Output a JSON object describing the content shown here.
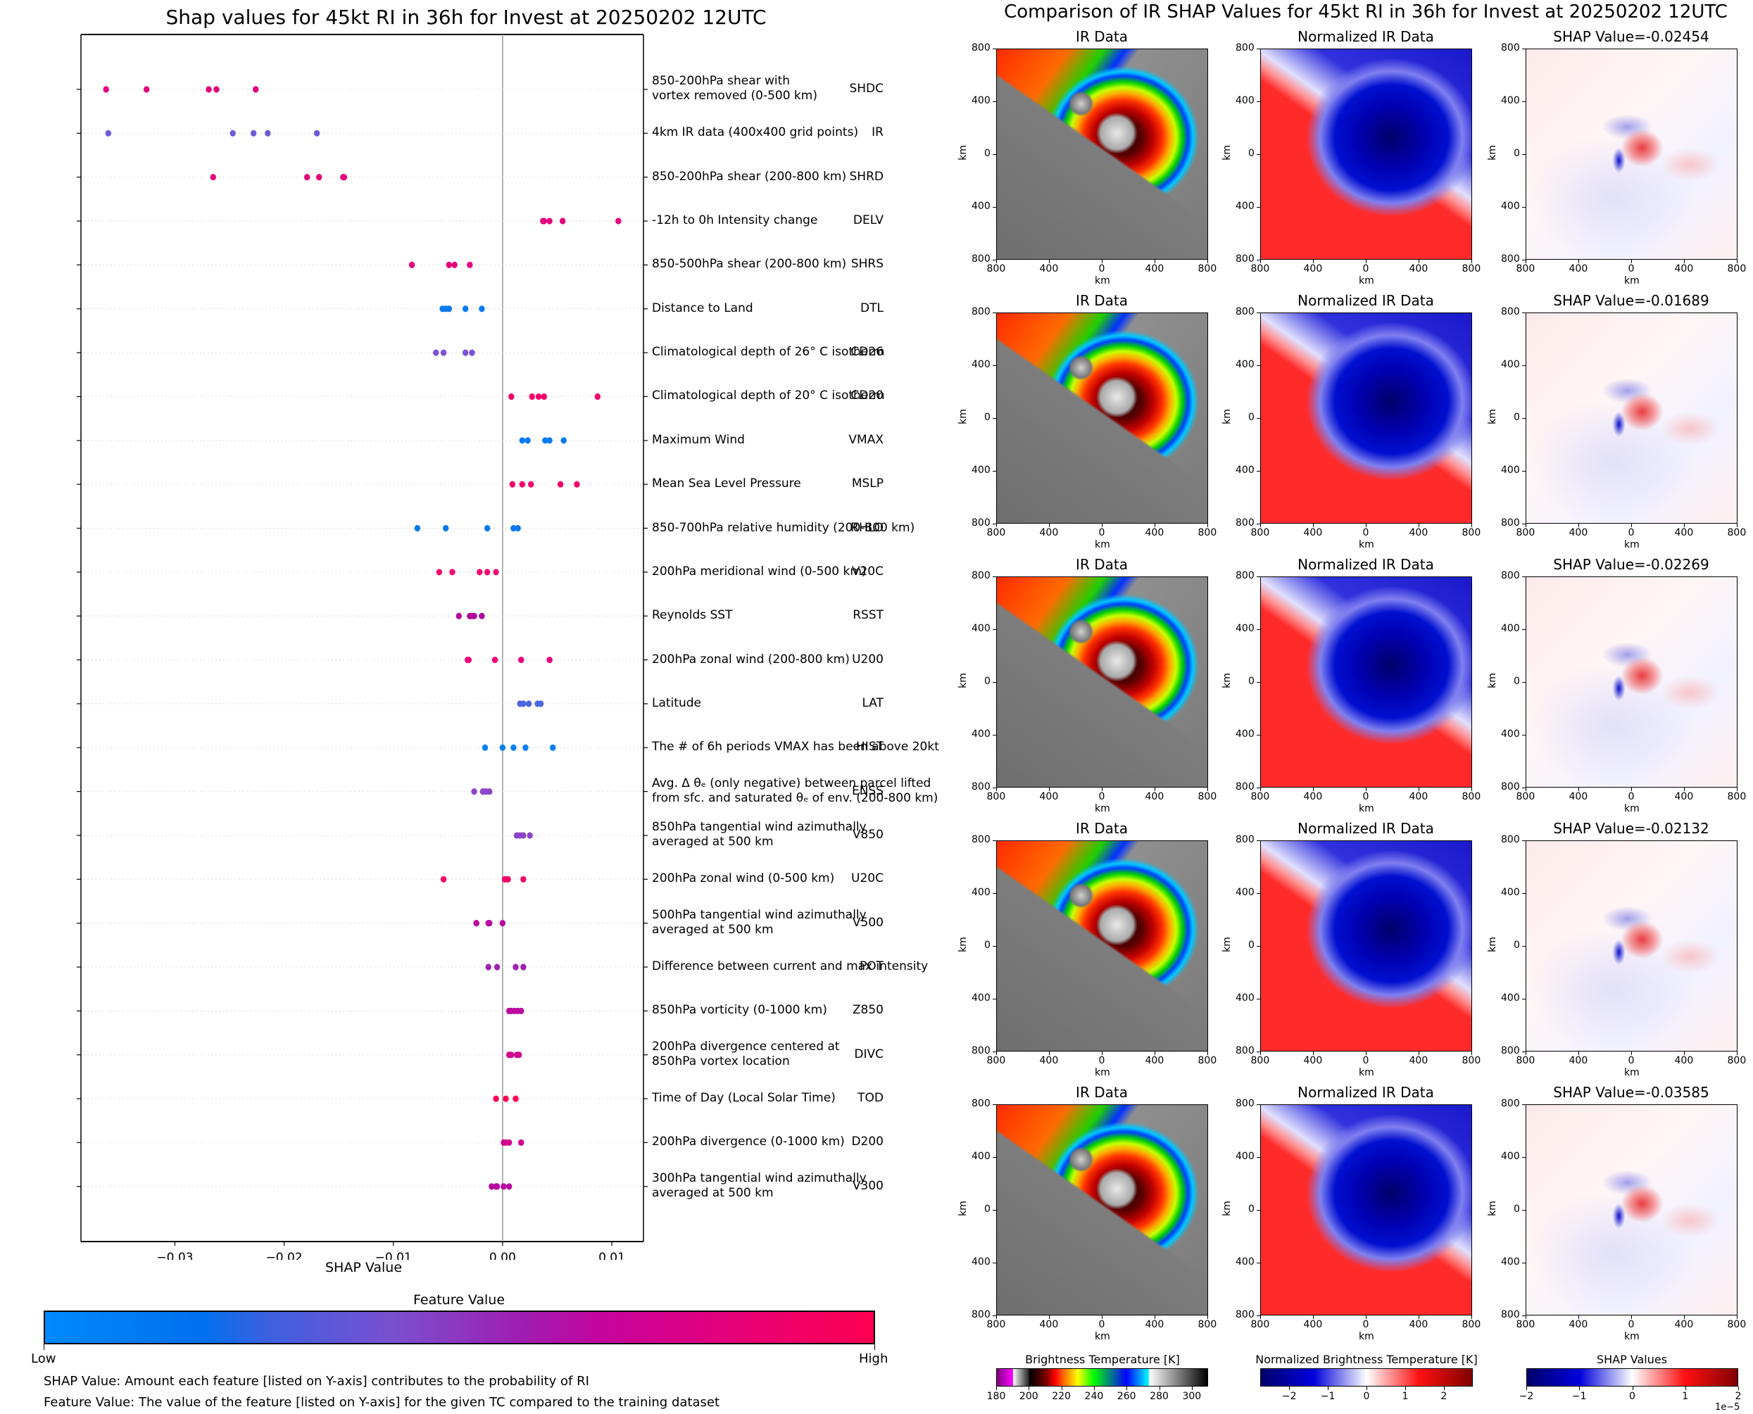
{
  "left_title": "Shap values for 45kt RI in 36h for Invest at 20250202 12UTC",
  "right_title": "Comparison of IR SHAP Values for 45kt RI in 36h for Invest at 20250202 12UTC",
  "chart_data": [
    {
      "type": "scatter",
      "title": "Shap values for 45kt RI in 36h for Invest at 20250202 12UTC",
      "xlabel": "SHAP Value",
      "ylabel": "",
      "xlim": [
        -0.0386,
        0.0129
      ],
      "xticks": [
        -0.03,
        -0.02,
        -0.01,
        0.0,
        0.01
      ],
      "xtick_labels": [
        "−0.03",
        "−0.02",
        "−0.01",
        "0.00",
        "0.01"
      ],
      "zero_line": 0.0,
      "grid": "dotted horizontal lines per feature",
      "color_scale": {
        "title": "Feature Value",
        "low_label": "Low",
        "high_label": "High",
        "low_color": "#008afb",
        "high_color": "#ff0052"
      },
      "features": [
        {
          "name": "SHDC",
          "description": [
            "850-200hPa shear with",
            "vortex removed (0-500 km)"
          ],
          "color": "#e5007d",
          "values": [
            -0.0363,
            -0.0326,
            -0.0269,
            -0.0262,
            -0.0226
          ]
        },
        {
          "name": "IR",
          "description": [
            "4km IR data (400x400 grid points)"
          ],
          "color": "#6d5bd8",
          "values": [
            -0.0361,
            -0.0247,
            -0.0228,
            -0.0215,
            -0.017
          ]
        },
        {
          "name": "SHRD",
          "description": [
            "850-200hPa shear (200-800 km)"
          ],
          "color": "#e5007d",
          "values": [
            -0.0265,
            -0.0179,
            -0.0168,
            -0.0146,
            -0.0145
          ]
        },
        {
          "name": "DELV",
          "description": [
            "-12h to 0h Intensity change"
          ],
          "color": "#e5007d",
          "values": [
            0.0037,
            0.0038,
            0.0043,
            0.0055,
            0.0106
          ]
        },
        {
          "name": "SHRS",
          "description": [
            "850-500hPa shear (200-800 km)"
          ],
          "color": "#e5007d",
          "values": [
            -0.0083,
            -0.0049,
            -0.0044,
            -0.003
          ]
        },
        {
          "name": "DTL",
          "description": [
            "Distance to Land"
          ],
          "color": "#0a7af0",
          "values": [
            -0.0055,
            -0.0052,
            -0.0049,
            -0.0034,
            -0.0019
          ]
        },
        {
          "name": "CD26",
          "description": [
            "Climatological depth of 26° C isotherm"
          ],
          "color": "#7a52d2",
          "values": [
            -0.0061,
            -0.0054,
            -0.0034,
            -0.0028
          ]
        },
        {
          "name": "CD20",
          "description": [
            "Climatological depth of 20° C isotherm"
          ],
          "color": "#f5006a",
          "values": [
            0.0008,
            0.0027,
            0.0033,
            0.0038,
            0.0087
          ]
        },
        {
          "name": "VMAX",
          "description": [
            "Maximum Wind"
          ],
          "color": "#0a7af0",
          "values": [
            0.0018,
            0.0023,
            0.0039,
            0.0043,
            0.0056
          ]
        },
        {
          "name": "MSLP",
          "description": [
            "Mean Sea Level Pressure"
          ],
          "color": "#f5006a",
          "values": [
            0.0009,
            0.0018,
            0.0026,
            0.0053,
            0.0068
          ]
        },
        {
          "name": "RHLO",
          "description": [
            "850-700hPa relative humidity (200-800 km)"
          ],
          "color": "#0a7af0",
          "values": [
            -0.0078,
            -0.0052,
            -0.0014,
            0.001,
            0.0014
          ]
        },
        {
          "name": "V20C",
          "description": [
            "200hPa meridional wind (0-500 km)"
          ],
          "color": "#f00a70",
          "values": [
            -0.0058,
            -0.0046,
            -0.0021,
            -0.0014,
            -0.0006
          ]
        },
        {
          "name": "RSST",
          "description": [
            "Reynolds SST"
          ],
          "color": "#b0089e",
          "values": [
            -0.004,
            -0.003,
            -0.0028,
            -0.0026,
            -0.0019
          ]
        },
        {
          "name": "U200",
          "description": [
            "200hPa zonal wind (200-800 km)"
          ],
          "color": "#ea0078",
          "values": [
            -0.0032,
            -0.0031,
            -0.0007,
            0.0017,
            0.0043
          ]
        },
        {
          "name": "LAT",
          "description": [
            "Latitude"
          ],
          "color": "#4a66e0",
          "values": [
            0.0016,
            0.0019,
            0.0024,
            0.0032,
            0.0035
          ]
        },
        {
          "name": "HIST",
          "description": [
            "The # of 6h periods VMAX has been above 20kt"
          ],
          "color": "#0a80f2",
          "values": [
            -0.0016,
            0.0,
            0.001,
            0.0021,
            0.0046
          ]
        },
        {
          "name": "ENSS",
          "description": [
            "Avg. Δ θₑ (only negative) between parcel lifted",
            "from sfc. and saturated θₑ of env. (200-800 km)"
          ],
          "color": "#8a45c8",
          "values": [
            -0.0026,
            -0.0018,
            -0.0017,
            -0.0015,
            -0.0012
          ]
        },
        {
          "name": "V850",
          "description": [
            "850hPa tangential wind azimuthally",
            "averaged at 500 km"
          ],
          "color": "#8a45c8",
          "values": [
            0.0013,
            0.0016,
            0.0019,
            0.0025
          ]
        },
        {
          "name": "U20C",
          "description": [
            "200hPa zonal wind (0-500 km)"
          ],
          "color": "#f5006a",
          "values": [
            -0.0054,
            0.0002,
            0.0003,
            0.0005,
            0.0019
          ]
        },
        {
          "name": "V500",
          "description": [
            "500hPa tangential wind azimuthally",
            "averaged at 500 km"
          ],
          "color": "#b80a9e",
          "values": [
            -0.0024,
            -0.0024,
            -0.0013,
            -0.0012,
            0.0
          ]
        },
        {
          "name": "POT",
          "description": [
            "Difference between current and max intensity"
          ],
          "color": "#a020b0",
          "values": [
            -0.0013,
            -0.0005,
            0.0012,
            0.0019
          ]
        },
        {
          "name": "Z850",
          "description": [
            "850hPa vorticity (0-1000 km)"
          ],
          "color": "#b80a9e",
          "values": [
            0.0006,
            0.0008,
            0.0011,
            0.0014,
            0.0017
          ]
        },
        {
          "name": "DIVC",
          "description": [
            "200hPa divergence centered at",
            "850hPa vortex location"
          ],
          "color": "#d0038e",
          "values": [
            0.0006,
            0.0008,
            0.0013,
            0.0015
          ]
        },
        {
          "name": "TOD",
          "description": [
            "Time of Day (Local Solar Time)"
          ],
          "color": "#ff0052",
          "values": [
            -0.0006,
            0.0003,
            0.0012
          ]
        },
        {
          "name": "D200",
          "description": [
            "200hPa divergence (0-1000 km)"
          ],
          "color": "#d0038e",
          "values": [
            0.0001,
            0.0003,
            0.0006,
            0.0017
          ]
        },
        {
          "name": "V300",
          "description": [
            "300hPa tangential wind azimuthally",
            "averaged at 500 km"
          ],
          "color": "#b80a9e",
          "values": [
            -0.001,
            -0.0006,
            -0.0005,
            0.0001,
            0.0006
          ]
        }
      ]
    },
    {
      "type": "heatmap",
      "title": "Comparison of IR SHAP Values for 45kt RI in 36h for Invest at 20250202 12UTC",
      "panel_axis_ticks": [
        "800",
        "400",
        "0",
        "400",
        "800"
      ],
      "axis_label": "km",
      "rows": [
        {
          "ir_title": "IR Data",
          "norm_title": "Normalized IR Data",
          "shap_title": "SHAP Value=-0.02454",
          "shap_value": -0.02454
        },
        {
          "ir_title": "IR Data",
          "norm_title": "Normalized IR Data",
          "shap_title": "SHAP Value=-0.01689",
          "shap_value": -0.01689
        },
        {
          "ir_title": "IR Data",
          "norm_title": "Normalized IR Data",
          "shap_title": "SHAP Value=-0.02269",
          "shap_value": -0.02269
        },
        {
          "ir_title": "IR Data",
          "norm_title": "Normalized IR Data",
          "shap_title": "SHAP Value=-0.02132",
          "shap_value": -0.02132
        },
        {
          "ir_title": "IR Data",
          "norm_title": "Normalized IR Data",
          "shap_title": "SHAP Value=-0.03585",
          "shap_value": -0.03585
        }
      ],
      "colorbars": [
        {
          "title": "Brightness Temperature [K]",
          "ticks": [
            "180",
            "200",
            "220",
            "240",
            "260",
            "280",
            "300"
          ],
          "range": [
            180,
            310
          ]
        },
        {
          "title": "Normalized Brightness Temperature [K]",
          "ticks": [
            "−2",
            "−1",
            "0",
            "1",
            "2"
          ],
          "range": [
            -2.75,
            2.75
          ]
        },
        {
          "title": "SHAP Values",
          "ticks": [
            "−2",
            "−1",
            "0",
            "1",
            "2"
          ],
          "range": [
            -2,
            2
          ],
          "multiplier": "1e−5"
        }
      ]
    }
  ],
  "notes": {
    "shap_value": "SHAP Value: Amount each feature [listed on Y-axis] contributes to the probability of RI",
    "feature_value": "Feature Value: The value of the feature [listed on Y-axis] for the given TC compared to the training dataset"
  }
}
